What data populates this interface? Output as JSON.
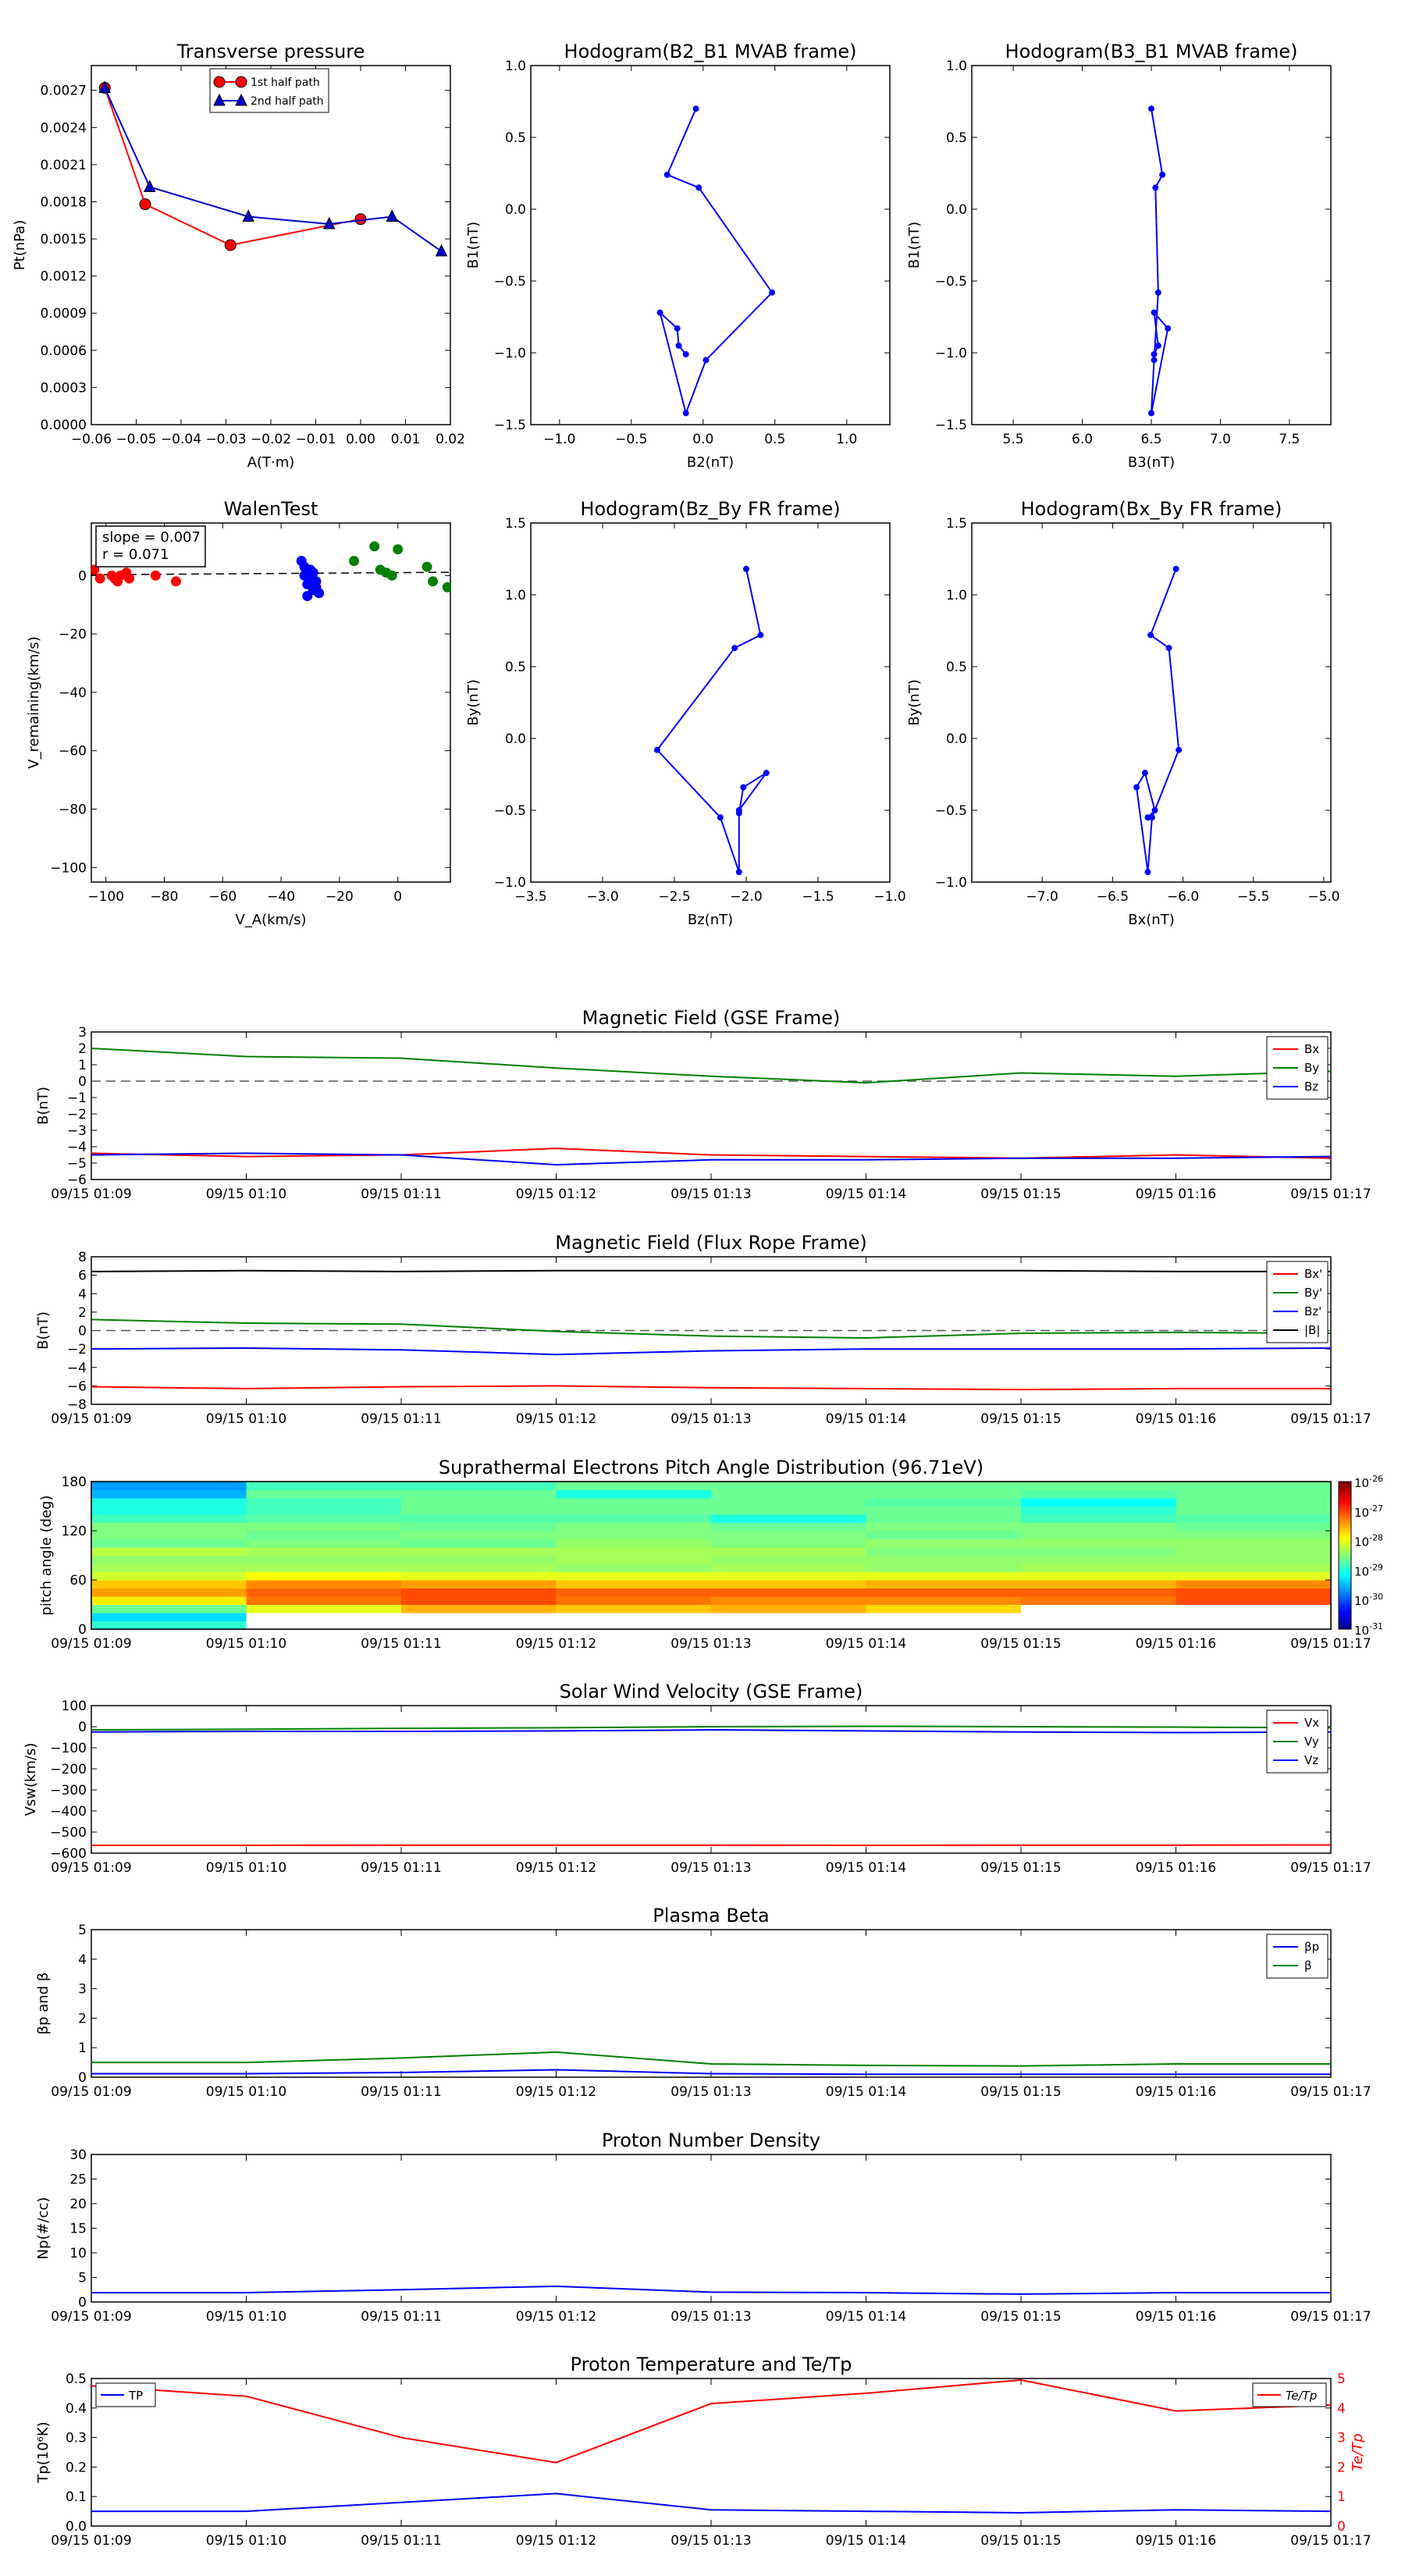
{
  "chart_data": [
    {
      "id": "transverse-pressure",
      "type": "line",
      "title": "Transverse pressure",
      "xlabel": "A(T·m)",
      "ylabel": "Pt(nPa)",
      "xlim": [
        -0.06,
        0.02
      ],
      "ylim": [
        0,
        0.0029
      ],
      "xticks": [
        -0.06,
        -0.05,
        -0.04,
        -0.03,
        -0.02,
        -0.01,
        0.0,
        0.01,
        0.02
      ],
      "xtick_labels": [
        "−0.06",
        "−0.05",
        "−0.04",
        "−0.03",
        "−0.02",
        "−0.01",
        "0.00",
        "0.01",
        "0.02"
      ],
      "yticks": [
        0,
        0.0003,
        0.0006,
        0.0009,
        0.0012,
        0.0015,
        0.0018,
        0.0021,
        0.0024,
        0.0027
      ],
      "ytick_labels": [
        "0.0000",
        "0.0003",
        "0.0006",
        "0.0009",
        "0.0012",
        "0.0015",
        "0.0018",
        "0.0021",
        "0.0024",
        "0.0027"
      ],
      "legend": "upper center",
      "series": [
        {
          "name": "1st half path",
          "color": "#ff0000",
          "marker": "circle",
          "x": [
            -0.057,
            -0.048,
            -0.029,
            0.0
          ],
          "y": [
            0.00272,
            0.00178,
            0.00145,
            0.00166
          ]
        },
        {
          "name": "2nd half path",
          "color": "#0000cc",
          "marker": "triangle",
          "x": [
            -0.057,
            -0.047,
            -0.025,
            -0.007,
            0.007,
            0.018
          ],
          "y": [
            0.00272,
            0.00192,
            0.00168,
            0.00162,
            0.00168,
            0.0014
          ]
        }
      ]
    },
    {
      "id": "hodogram-b2-b1",
      "type": "line",
      "title": "Hodogram(B2_B1 MVAB frame)",
      "xlabel": "B2(nT)",
      "ylabel": "B1(nT)",
      "xlim": [
        -1.2,
        1.3
      ],
      "ylim": [
        -1.5,
        1.0
      ],
      "xticks": [
        -1.0,
        -0.5,
        0.0,
        0.5,
        1.0
      ],
      "xtick_labels": [
        "−1.0",
        "−0.5",
        "0.0",
        "0.5",
        "1.0"
      ],
      "yticks": [
        -1.5,
        -1.0,
        -0.5,
        0.0,
        0.5,
        1.0
      ],
      "ytick_labels": [
        "−1.5",
        "−1.0",
        "−0.5",
        "0.0",
        "0.5",
        "1.0"
      ],
      "series": [
        {
          "color": "#0000ff",
          "marker": "dot",
          "x": [
            -0.05,
            -0.25,
            -0.03,
            0.48,
            0.02,
            -0.12,
            -0.3,
            -0.18,
            -0.17,
            -0.12
          ],
          "y": [
            0.7,
            0.24,
            0.15,
            -0.58,
            -1.05,
            -1.42,
            -0.72,
            -0.83,
            -0.95,
            -1.01
          ]
        }
      ]
    },
    {
      "id": "hodogram-b3-b1",
      "type": "line",
      "title": "Hodogram(B3_B1 MVAB frame)",
      "xlabel": "B3(nT)",
      "ylabel": "B1(nT)",
      "xlim": [
        5.2,
        7.8
      ],
      "ylim": [
        -1.5,
        1.0
      ],
      "xticks": [
        5.5,
        6.0,
        6.5,
        7.0,
        7.5
      ],
      "xtick_labels": [
        "5.5",
        "6.0",
        "6.5",
        "7.0",
        "7.5"
      ],
      "yticks": [
        -1.5,
        -1.0,
        -0.5,
        0.0,
        0.5,
        1.0
      ],
      "ytick_labels": [
        "−1.5",
        "−1.0",
        "−0.5",
        "0.0",
        "0.5",
        "1.0"
      ],
      "series": [
        {
          "color": "#0000ff",
          "marker": "dot",
          "x": [
            6.5,
            6.58,
            6.53,
            6.55,
            6.52,
            6.5,
            6.62,
            6.52,
            6.55,
            6.52
          ],
          "y": [
            0.7,
            0.24,
            0.15,
            -0.58,
            -1.05,
            -1.42,
            -0.83,
            -0.72,
            -0.95,
            -1.01
          ]
        }
      ]
    },
    {
      "id": "walen-test",
      "type": "scatter",
      "title": "WalenTest",
      "xlabel": "V_A(km/s)",
      "ylabel": "V_remaining(km/s)",
      "xlim": [
        -105,
        18
      ],
      "ylim": [
        -105,
        18
      ],
      "xticks": [
        -100,
        -80,
        -60,
        -40,
        -20,
        0
      ],
      "xtick_labels": [
        "−100",
        "−80",
        "−60",
        "−40",
        "−20",
        "0"
      ],
      "yticks": [
        -100,
        -80,
        -60,
        -40,
        -20,
        0
      ],
      "ytick_labels": [
        "−100",
        "−80",
        "−60",
        "−40",
        "−20",
        "0"
      ],
      "annotation": [
        "slope = 0.007",
        "r = 0.071"
      ],
      "fit_line": {
        "slope": 0.007,
        "intercept": 1.0,
        "style": "dashed"
      },
      "series": [
        {
          "color": "#ff0000",
          "x": [
            -104,
            -102,
            -98,
            -97,
            -96,
            -95,
            -93,
            -92,
            -83,
            -76
          ],
          "y": [
            2,
            -1,
            0,
            -1,
            -2,
            0,
            1,
            -1,
            0,
            -2
          ]
        },
        {
          "color": "#0000ff",
          "x": [
            -33,
            -32,
            -32,
            -31,
            -31,
            -30,
            -30,
            -29,
            -29,
            -28,
            -28,
            -27
          ],
          "y": [
            5,
            3,
            0,
            -3,
            -7,
            2,
            -1,
            -5,
            1,
            -4,
            -2,
            -6
          ]
        },
        {
          "color": "#008000",
          "x": [
            -15,
            -8,
            -6,
            -4,
            -2,
            0,
            10,
            12,
            17
          ],
          "y": [
            5,
            10,
            2,
            1,
            0,
            9,
            3,
            -2,
            -4
          ]
        }
      ]
    },
    {
      "id": "hodogram-bz-by",
      "type": "line",
      "title": "Hodogram(Bz_By FR frame)",
      "xlabel": "Bz(nT)",
      "ylabel": "By(nT)",
      "xlim": [
        -3.5,
        -1.0
      ],
      "ylim": [
        -1.0,
        1.5
      ],
      "xticks": [
        -3.5,
        -3.0,
        -2.5,
        -2.0,
        -1.5,
        -1.0
      ],
      "xtick_labels": [
        "−3.5",
        "−3.0",
        "−2.5",
        "−2.0",
        "−1.5",
        "−1.0"
      ],
      "yticks": [
        -1.0,
        -0.5,
        0.0,
        0.5,
        1.0,
        1.5
      ],
      "ytick_labels": [
        "−1.0",
        "−0.5",
        "0.0",
        "0.5",
        "1.0",
        "1.5"
      ],
      "series": [
        {
          "color": "#0000ff",
          "marker": "dot",
          "x": [
            -2.0,
            -1.9,
            -2.08,
            -2.62,
            -2.18,
            -2.05,
            -2.05,
            -2.02,
            -1.86,
            -2.05
          ],
          "y": [
            1.18,
            0.72,
            0.63,
            -0.08,
            -0.55,
            -0.93,
            -0.52,
            -0.34,
            -0.24,
            -0.5
          ]
        }
      ]
    },
    {
      "id": "hodogram-bx-by",
      "type": "line",
      "title": "Hodogram(Bx_By FR frame)",
      "xlabel": "Bx(nT)",
      "ylabel": "By(nT)",
      "xlim": [
        -7.5,
        -4.95
      ],
      "ylim": [
        -1.0,
        1.5
      ],
      "xticks": [
        -7.0,
        -6.5,
        -6.0,
        -5.5,
        -5.0
      ],
      "xtick_labels": [
        "−7.0",
        "−6.5",
        "−6.0",
        "−5.5",
        "−5.0"
      ],
      "yticks": [
        -1.0,
        -0.5,
        0.0,
        0.5,
        1.0,
        1.5
      ],
      "ytick_labels": [
        "−1.0",
        "−0.5",
        "0.0",
        "0.5",
        "1.0",
        "1.5"
      ],
      "series": [
        {
          "color": "#0000ff",
          "marker": "dot",
          "x": [
            -6.05,
            -6.23,
            -6.1,
            -6.03,
            -6.22,
            -6.25,
            -6.33,
            -6.27,
            -6.2,
            -6.25
          ],
          "y": [
            1.18,
            0.72,
            0.63,
            -0.08,
            -0.55,
            -0.93,
            -0.34,
            -0.24,
            -0.5,
            -0.55
          ]
        }
      ]
    },
    {
      "id": "magnetic-field-gse",
      "type": "line",
      "title": "Magnetic Field (GSE Frame)",
      "ylabel": "B(nT)",
      "ylim": [
        -6,
        3
      ],
      "yticks": [
        -6,
        -5,
        -4,
        -3,
        -2,
        -1,
        0,
        1,
        2,
        3
      ],
      "ytick_labels": [
        "−6",
        "−5",
        "−4",
        "−3",
        "−2",
        "−1",
        "0",
        "1",
        "2",
        "3"
      ],
      "zero_line": true,
      "legend": "right",
      "series": [
        {
          "name": "Bx",
          "color": "#ff0000",
          "values": [
            -4.4,
            -4.6,
            -4.5,
            -4.1,
            -4.5,
            -4.6,
            -4.7,
            -4.5,
            -4.7
          ]
        },
        {
          "name": "By",
          "color": "#008000",
          "values": [
            2.0,
            1.5,
            1.4,
            0.8,
            0.3,
            -0.1,
            0.5,
            0.3,
            0.6
          ]
        },
        {
          "name": "Bz",
          "color": "#0000ff",
          "values": [
            -4.5,
            -4.4,
            -4.5,
            -5.1,
            -4.8,
            -4.8,
            -4.7,
            -4.7,
            -4.6
          ]
        }
      ]
    },
    {
      "id": "magnetic-field-fr",
      "type": "line",
      "title": "Magnetic Field (Flux Rope Frame)",
      "ylabel": "B(nT)",
      "ylim": [
        -8,
        8
      ],
      "yticks": [
        -8,
        -6,
        -4,
        -2,
        0,
        2,
        4,
        6,
        8
      ],
      "ytick_labels": [
        "−8",
        "−6",
        "−4",
        "−2",
        "0",
        "2",
        "4",
        "6",
        "8"
      ],
      "zero_line": true,
      "legend": "right",
      "series": [
        {
          "name": "Bx'",
          "color": "#ff0000",
          "values": [
            -6.1,
            -6.3,
            -6.1,
            -6.0,
            -6.2,
            -6.3,
            -6.4,
            -6.3,
            -6.3
          ]
        },
        {
          "name": "By'",
          "color": "#008000",
          "values": [
            1.2,
            0.8,
            0.7,
            -0.1,
            -0.6,
            -0.8,
            -0.3,
            -0.2,
            -0.3
          ]
        },
        {
          "name": "Bz'",
          "color": "#0000ff",
          "values": [
            -2.0,
            -1.9,
            -2.1,
            -2.6,
            -2.2,
            -2.0,
            -2.0,
            -2.0,
            -1.9
          ]
        },
        {
          "name": "|B|",
          "color": "#000000",
          "values": [
            6.4,
            6.5,
            6.4,
            6.5,
            6.5,
            6.5,
            6.5,
            6.4,
            6.4
          ]
        }
      ]
    },
    {
      "id": "pitch-angle",
      "type": "heatmap",
      "title": "Suprathermal Electrons Pitch Angle Distribution (96.71eV)",
      "ylabel": "pitch angle (deg)",
      "ylim": [
        0,
        180
      ],
      "yticks": [
        0,
        60,
        120,
        180
      ],
      "ytick_labels": [
        "0",
        "60",
        "120",
        "180"
      ],
      "colorbar_labels": [
        "10",
        "10",
        "10",
        "10",
        "10",
        "10"
      ],
      "colorbar_exponents": [
        "-26",
        "-27",
        "-28",
        "-29",
        "-30",
        "-31"
      ],
      "colorbar_log_range": [
        -31,
        -26
      ],
      "bins_deg": 10,
      "values_log10": [
        [
          -28.9,
          -29.3,
          -28.6,
          -27.8,
          -27.4,
          -27.6,
          -28.1,
          -28.3,
          -28.4,
          -28.2,
          -28.6,
          -28.5,
          -28.5,
          -28.8,
          -29.0,
          -29.0,
          -29.5,
          -29.6
        ],
        [
          -30.5,
          -30.5,
          -28.0,
          -27.2,
          -27.1,
          -27.3,
          -27.9,
          -28.3,
          -28.4,
          -28.3,
          -28.5,
          -28.6,
          -28.5,
          -28.7,
          -28.8,
          -28.8,
          -28.6,
          -28.8
        ],
        [
          -30.5,
          -30.5,
          -27.5,
          -27.0,
          -27.0,
          -27.4,
          -28.0,
          -28.3,
          -28.4,
          -28.3,
          -28.6,
          -28.5,
          -28.6,
          -28.7,
          -28.6,
          -28.6,
          -28.6,
          -28.8
        ],
        [
          -30.5,
          -30.5,
          -27.6,
          -27.2,
          -27.1,
          -27.6,
          -28.0,
          -28.4,
          -28.3,
          -28.3,
          -28.4,
          -28.5,
          -28.5,
          -28.7,
          -28.6,
          -28.6,
          -29.0,
          -28.6
        ],
        [
          -30.5,
          -30.5,
          -27.5,
          -27.3,
          -27.1,
          -27.6,
          -28.0,
          -28.3,
          -28.4,
          -28.3,
          -28.5,
          -28.5,
          -28.6,
          -29.0,
          -28.6,
          -28.6,
          -28.6,
          -28.6
        ],
        [
          -30.5,
          -30.5,
          -27.7,
          -27.3,
          -27.1,
          -27.5,
          -28.0,
          -28.4,
          -28.4,
          -28.5,
          -28.4,
          -28.6,
          -28.5,
          -28.6,
          -28.6,
          -28.7,
          -28.6,
          -28.6
        ],
        [
          -30.5,
          -30.5,
          -30.5,
          -27.2,
          -27.1,
          -27.5,
          -28.0,
          -28.3,
          -28.4,
          -28.5,
          -28.4,
          -28.5,
          -28.5,
          -28.8,
          -28.9,
          -29.1,
          -28.7,
          -28.6
        ],
        [
          -30.5,
          -30.5,
          -30.5,
          -27.0,
          -27.0,
          -27.3,
          -28.0,
          -28.3,
          -28.4,
          -28.4,
          -28.4,
          -28.5,
          -28.6,
          -28.7,
          -28.6,
          -28.6,
          -28.6,
          -28.6
        ]
      ]
    },
    {
      "id": "solar-wind-velocity",
      "type": "line",
      "title": "Solar Wind Velocity (GSE Frame)",
      "ylabel": "Vsw(km/s)",
      "ylim": [
        -600,
        100
      ],
      "yticks": [
        -600,
        -500,
        -400,
        -300,
        -200,
        -100,
        0,
        100
      ],
      "ytick_labels": [
        "−600",
        "−500",
        "−400",
        "−300",
        "−200",
        "−100",
        "0",
        "100"
      ],
      "legend": "right",
      "series": [
        {
          "name": "Vx",
          "color": "#ff0000",
          "values": [
            -563,
            -563,
            -562,
            -562,
            -562,
            -563,
            -562,
            -562,
            -561
          ]
        },
        {
          "name": "Vy",
          "color": "#008000",
          "values": [
            -15,
            -12,
            -8,
            -5,
            0,
            2,
            0,
            -2,
            -5
          ]
        },
        {
          "name": "Vz",
          "color": "#0000ff",
          "values": [
            -25,
            -22,
            -22,
            -20,
            -15,
            -20,
            -25,
            -28,
            -25
          ]
        }
      ]
    },
    {
      "id": "plasma-beta",
      "type": "line",
      "title": "Plasma Beta",
      "ylabel": "βp and β",
      "ylim": [
        0,
        5
      ],
      "yticks": [
        0,
        1,
        2,
        3,
        4,
        5
      ],
      "ytick_labels": [
        "0",
        "1",
        "2",
        "3",
        "4",
        "5"
      ],
      "legend": "right",
      "series": [
        {
          "name": "βp",
          "color": "#0000ff",
          "values": [
            0.12,
            0.12,
            0.16,
            0.25,
            0.12,
            0.1,
            0.1,
            0.1,
            0.1
          ]
        },
        {
          "name": "β",
          "color": "#008000",
          "values": [
            0.5,
            0.5,
            0.65,
            0.85,
            0.45,
            0.4,
            0.38,
            0.45,
            0.45
          ]
        }
      ]
    },
    {
      "id": "proton-density",
      "type": "line",
      "title": "Proton Number Density",
      "ylabel": "Np(#/cc)",
      "ylim": [
        0,
        30
      ],
      "yticks": [
        0,
        5,
        10,
        15,
        20,
        25,
        30
      ],
      "ytick_labels": [
        "0",
        "5",
        "10",
        "15",
        "20",
        "25",
        "30"
      ],
      "series": [
        {
          "color": "#0000ff",
          "values": [
            1.9,
            1.9,
            2.5,
            3.2,
            2.0,
            1.9,
            1.6,
            1.9,
            1.9
          ]
        }
      ]
    },
    {
      "id": "proton-temperature",
      "type": "line",
      "title": "Proton Temperature and Te/Tp",
      "ylabel": "Tp(10⁶K)",
      "ylabel_right": "Te/Tp",
      "ylim": [
        0,
        0.5
      ],
      "ylim_right": [
        0,
        5
      ],
      "yticks": [
        0,
        0.1,
        0.2,
        0.3,
        0.4,
        0.5
      ],
      "ytick_labels": [
        "0.0",
        "0.1",
        "0.2",
        "0.3",
        "0.4",
        "0.5"
      ],
      "yticks_right": [
        0,
        1,
        2,
        3,
        4,
        5
      ],
      "ytick_labels_right": [
        "0",
        "1",
        "2",
        "3",
        "4",
        "5"
      ],
      "series": [
        {
          "name": "TP",
          "color": "#0000ff",
          "axis": "left",
          "values": [
            0.05,
            0.05,
            0.08,
            0.11,
            0.055,
            0.05,
            0.045,
            0.055,
            0.05
          ]
        },
        {
          "name": "Te/Tp",
          "color": "#ff0000",
          "axis": "right",
          "values": [
            4.75,
            4.4,
            3.0,
            2.15,
            4.15,
            4.5,
            4.95,
            3.9,
            4.1
          ]
        }
      ]
    }
  ],
  "time_axis": {
    "labels": [
      "09/15 01:09",
      "09/15 01:10",
      "09/15 01:11",
      "09/15 01:12",
      "09/15 01:13",
      "09/15 01:14",
      "09/15 01:15",
      "09/15 01:16",
      "09/15 01:17"
    ]
  }
}
